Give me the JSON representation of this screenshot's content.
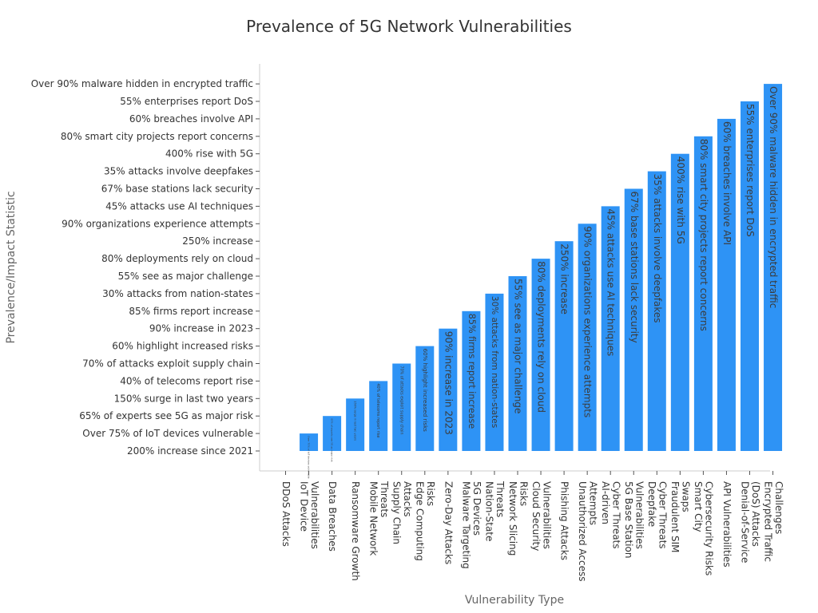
{
  "chart_data": {
    "type": "bar",
    "title": "Prevalence of 5G Network Vulnerabilities",
    "xlabel": "Vulnerability Type",
    "ylabel": "Prevalence/Impact Statistic",
    "grid": false,
    "legend": "none",
    "bar_color": "#2e93f5",
    "categories": [
      "DDoS Attacks",
      "IoT Device Vulnerabilities",
      "Data Breaches",
      "Ransomware Growth",
      "Mobile Network Threats",
      "Supply Chain Attacks",
      "Edge Computing Risks",
      "Zero-Day Attacks",
      "Malware Targeting 5G Devices",
      "Nation-State Threats",
      "Network Slicing Risks",
      "Cloud Security Vulnerabilities",
      "Phishing Attacks",
      "Unauthorized Access Attempts",
      "AI-driven Cyber Threats",
      "5G Base Station Vulnerabilities",
      "Deepfake Cyber Threats",
      "Fraudulent SIM Swaps",
      "Smart City Cybersecurity Risks",
      "API Vulnerabilities",
      "Denial-of-Service (DoS) Attacks",
      "Encrypted Traffic Challenges"
    ],
    "x_tick_lines": [
      [
        "DDoS Attacks"
      ],
      [
        "IoT Device",
        "Vulnerabilities"
      ],
      [
        "Data Breaches"
      ],
      [
        "Ransomware Growth"
      ],
      [
        "Mobile Network",
        "Threats"
      ],
      [
        "Supply Chain",
        "Attacks"
      ],
      [
        "Edge Computing",
        "Risks"
      ],
      [
        "Zero-Day Attacks"
      ],
      [
        "Malware Targeting",
        "5G Devices"
      ],
      [
        "Nation-State",
        "Threats"
      ],
      [
        "Network Slicing",
        "Risks"
      ],
      [
        "Cloud Security",
        "Vulnerabilities"
      ],
      [
        "Phishing Attacks"
      ],
      [
        "Unauthorized Access",
        "Attempts"
      ],
      [
        "AI-driven",
        "Cyber Threats"
      ],
      [
        "5G Base Station",
        "Vulnerabilities"
      ],
      [
        "Deepfake",
        "Cyber Threats"
      ],
      [
        "Fraudulent SIM",
        "Swaps"
      ],
      [
        "Smart City",
        "Cybersecurity Risks"
      ],
      [
        "API Vulnerabilities"
      ],
      [
        "Denial-of-Service",
        "(DoS) Attacks"
      ],
      [
        "Encrypted Traffic",
        "Challenges"
      ]
    ],
    "y_categories": [
      "200% increase since 2021",
      "Over 75% of IoT devices vulnerable",
      "65% of experts see 5G as major risk",
      "150% surge in last two years",
      "40% of telecoms report rise",
      "70% of attacks exploit supply chain",
      "60% highlight increased risks",
      "90% increase in 2023",
      "85% firms report increase",
      "30% attacks from nation-states",
      "55% see as major challenge",
      "80% deployments rely on cloud",
      "250% increase",
      "90% organizations experience attempts",
      "45% attacks use AI techniques",
      "67% base stations lack security",
      "35% attacks involve deepfakes",
      "400% rise with 5G",
      "80% smart city projects report concerns",
      "60% breaches involve API",
      "55% enterprises report DoS",
      "Over 90% malware hidden in encrypted traffic"
    ],
    "values": [
      "200% increase since 2021",
      "Over 75% of IoT devices vulnerable",
      "65% of experts see 5G as major risk",
      "150% surge in last two years",
      "40% of telecoms report rise",
      "70% of attacks exploit supply chain",
      "60% highlight increased risks",
      "90% increase in 2023",
      "85% firms report increase",
      "30% attacks from nation-states",
      "55% see as major challenge",
      "80% deployments rely on cloud",
      "250% increase",
      "90% organizations experience attempts",
      "45% attacks use AI techniques",
      "67% base stations lack security",
      "35% attacks involve deepfakes",
      "400% rise with 5G",
      "80% smart city projects report concerns",
      "60% breaches involve API",
      "55% enterprises report DoS",
      "Over 90% malware hidden in encrypted traffic"
    ]
  }
}
